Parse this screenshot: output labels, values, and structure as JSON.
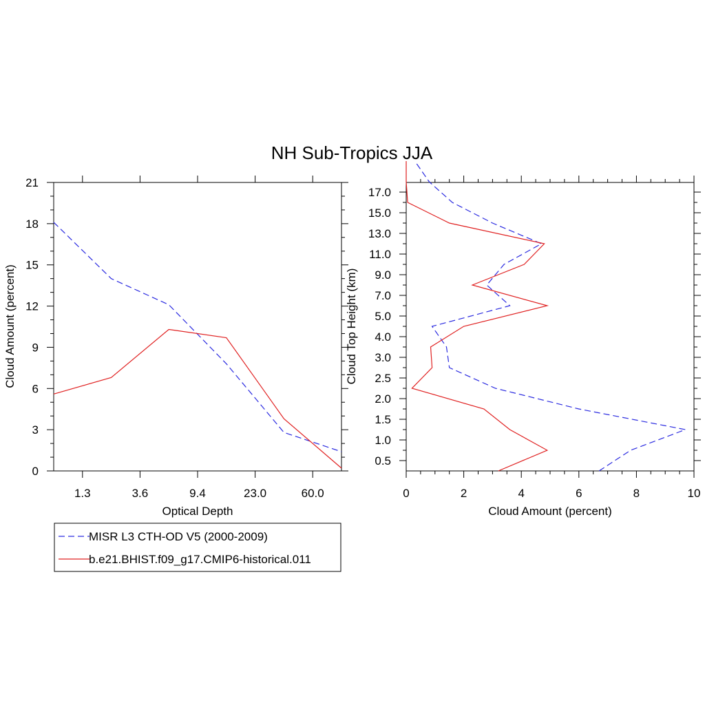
{
  "title": "NH Sub-Tropics JJA",
  "colors": {
    "obs": "#2a2ae0",
    "model": "#e02020",
    "axis": "#000000"
  },
  "legend": {
    "obs_label": "MISR L3 CTH-OD V5 (2000-2009)",
    "model_label": "b.e21.BHIST.f09_g17.CMIP6-historical.011"
  },
  "chart_data": [
    {
      "type": "line",
      "title": "",
      "xlabel": "Optical Depth",
      "ylabel": "Cloud Amount (percent)",
      "x_ticks": [
        "1.3",
        "3.6",
        "9.4",
        "23.0",
        "60.0"
      ],
      "ylim": [
        0,
        21
      ],
      "y_ticks": [
        0,
        3,
        6,
        9,
        12,
        15,
        18,
        21
      ],
      "x_positions": [
        0,
        1,
        2,
        3,
        4,
        5
      ],
      "series": [
        {
          "name": "MISR L3 CTH-OD V5 (2000-2009)",
          "style": "dashed",
          "values": [
            18.1,
            14.0,
            12.1,
            7.8,
            2.8,
            1.4
          ]
        },
        {
          "name": "b.e21.BHIST.f09_g17.CMIP6-historical.011",
          "style": "solid",
          "values": [
            5.6,
            6.8,
            10.3,
            9.7,
            3.8,
            0.2
          ]
        }
      ]
    },
    {
      "type": "line",
      "title": "",
      "xlabel": "Cloud Amount (percent)",
      "ylabel": "Cloud Top Height (km)",
      "xlim": [
        0,
        10
      ],
      "x_ticks": [
        0,
        2,
        4,
        6,
        8,
        10
      ],
      "y_ticks": [
        "0.5",
        "1.0",
        "1.5",
        "2.0",
        "2.5",
        "3.0",
        "4.0",
        "5.0",
        "7.0",
        "9.0",
        "11.0",
        "13.0",
        "15.0",
        "17.0"
      ],
      "y_positions": [
        0.5,
        1.5,
        2.5,
        3.5,
        4.5,
        5.5,
        6.5,
        7.5,
        8.5,
        9.5,
        10.5,
        11.5,
        12.5,
        13.5,
        14.5,
        15.5
      ],
      "series": [
        {
          "name": "MISR L3 CTH-OD V5 (2000-2009)",
          "style": "dashed",
          "values": [
            6.7,
            7.8,
            9.7,
            6.0,
            3.1,
            1.5,
            1.4,
            0.9,
            3.6,
            2.8,
            3.4,
            4.7,
            3.0,
            1.6,
            0.8,
            0.3
          ]
        },
        {
          "name": "b.e21.BHIST.f09_g17.CMIP6-historical.011",
          "style": "solid",
          "values": [
            3.2,
            4.9,
            3.6,
            2.7,
            0.2,
            0.9,
            0.85,
            2.0,
            4.9,
            2.3,
            4.1,
            4.8,
            1.5,
            0.05,
            0.0,
            0.0
          ]
        }
      ]
    }
  ]
}
